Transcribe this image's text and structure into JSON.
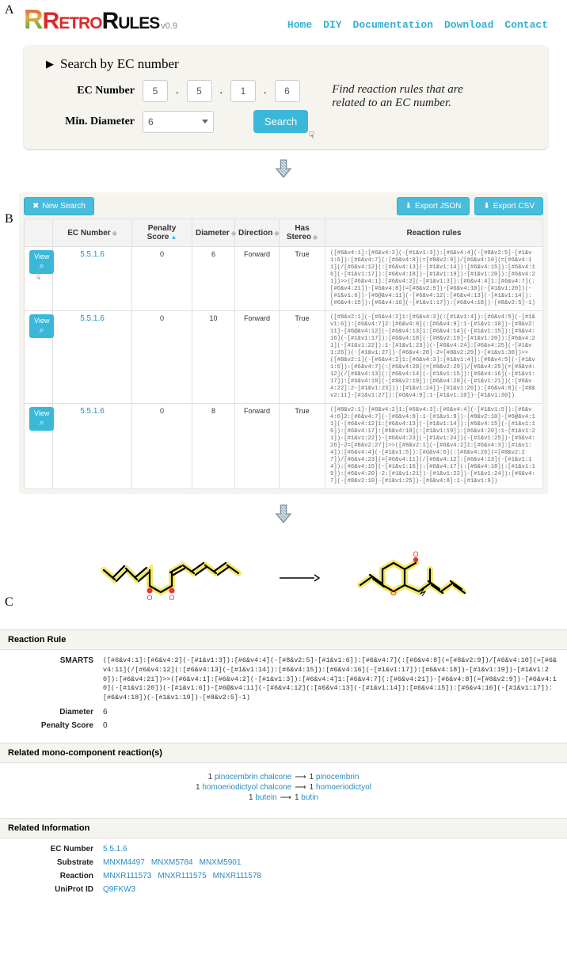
{
  "brand": {
    "retro": "Retro",
    "rules": "Rules",
    "version": "v0.9"
  },
  "nav": {
    "home": "Home",
    "diy": "DIY",
    "docs": "Documentation",
    "download": "Download",
    "contact": "Contact"
  },
  "labels": {
    "A": "A",
    "B": "B",
    "C": "C"
  },
  "search": {
    "title": "Search by EC number",
    "ec_label": "EC Number",
    "diam_label": "Min. Diameter",
    "ec": [
      "5",
      "5",
      "1",
      "6"
    ],
    "min_diameter": "6",
    "button": "Search",
    "desc": "Find reaction rules that are related to an EC number."
  },
  "results": {
    "new_search": "New Search",
    "export_json": "Export JSON",
    "export_csv": "Export CSV",
    "columns": {
      "ec": "EC Number",
      "penalty": "Penalty Score",
      "diameter": "Diameter",
      "direction": "Direction",
      "stereo": "Has Stereo",
      "rules": "Reaction rules",
      "view": "View"
    },
    "rows": [
      {
        "ec": "5.5.1.6",
        "penalty": "0",
        "diameter": "6",
        "direction": "Forward",
        "stereo": "True",
        "rules": "([#6&v4:1]:[#6&v4:2](-[#1&v1:3]):[#6&v4:4](-[#8&v2:5]-[#1&v1:6]):[#6&v4:7](:[#6&v4:8](=[#8&v2:9])/[#6&v4:10](=[#6&v4:11](/[#6&v4:12](:[#6&v4:13](-[#1&v1:14]):[#6&v4:15]):[#6&v4:16](-[#1&v1:17]):[#6&v4:18])-[#1&v1:19])-[#1&v1:20]):[#6&v4:21])>>([#6&v4:1]:[#6&v4:2](-[#1&v1:3]):[#6&v4:4]1:[#6&v4:7](:[#6&v4:21])-[#6&v4:8](=[#8&v2:9])-[#6&v4:10](-[#1&v1:20])(-[#1&v1:6])-[#6@&v4:11](-[#6&v4:12(:[#6&v4:13](-[#1&v1:14]):[#6&v4:15]):[#6&v4:16](-[#1&v1:17]):[#6&v4:18])-[#8&v2:5]-1)"
      },
      {
        "ec": "5.5.1.6",
        "penalty": "0",
        "diameter": "10",
        "direction": "Forward",
        "stereo": "True",
        "rules": "([#8&v2:1](-[#6&v4:2]1:[#6&v4:3](:[#1&v1:4]):[#6&v4:5](-[#1&v1:6]):[#6&v4:7]2:[#6&v4:8](:[#6&v4:9]:1-[#1&v1:10])-[#8&v2:11]-[#6@&v4:12](-[#6&v4:13]1:[#6&v4:14](-[#1&v1:15]):[#6&v4:16](-[#1&v1:17]):[#6&v4:18](-[#8&v2:19]-[#1&v1:20]):[#6&v4:21](-[#1&v1:22]):1-[#1&v1:23])(-[#6&v4:24]:[#6&v4:25](-[#1&v1:26])(-[#1&v1:27])-[#6&v4:28]-2=[#8&v2:29])-[#1&v1:30])>>([#8&v2:1](-[#6&v4:2]1:[#6&v4:3]:[#1&v1:4]):[#6&v4:5](-[#1&v1:6]):[#6&v4:7](:[#6&v4:28](=[#8&v2:29])/[#6&v4:25](=[#6&v4:12](/[#6&v4:13](:[#6&v4:14](-[#1&v1:15]):[#6&v4:16](-[#1&v1:17]):[#6&v4:18](-[#8&v2:19]):[#6&v4:20](-[#1&v1:21])(:[#6&v4:22]:2-[#1&v1:23])):[#1&v1:24])-[#1&v1:26]):[#6&v4:8](-[#8&v2:11]-[#1&v1:27]):[#6&v4:9]:1-[#1&v1:10])-[#1&v1:30])"
      },
      {
        "ec": "5.5.1.6",
        "penalty": "0",
        "diameter": "8",
        "direction": "Forward",
        "stereo": "True",
        "rules": "([#8&v2:1]-[#6&v4:2]1:[#6&v4:3]:[#6&v4:4](-[#1&v1:5]):[#6&v4:6]2:[#6&v4:7](-[#6&v4:8]:1-[#1&v1:9])-[#8&v2:10]-[#6@&v4:11](-[#6&v4:12]1:[#6&v4:13](-[#1&v1:14]):[#6&v4:15](-[#1&v1:16]):[#6&v4:17]:[#6&v4:18](:[#1&v1:19]):[#6&v4:20]:1-[#1&v1:21])-[#1&v1:22])-[#6&v4:23](-[#1&v1:24])(-[#1&v1:25])-[#6&v4:26]-2=[#8&v2:27])>>([#8&v2:1](-[#6&v4:2]1:[#6&v4:3]:[#1&v1:4]):[#6&v4:4](-[#1&v1:5]):[#6&v4:6](:[#6&v4:26](=[#8&v2:27])/[#6&v4:23](=[#6&v4:11](/[#6&v4:12]:[#6&v4:13](-[#1&v1:14]):[#6&v4:15](-[#1&v1:16]):[#6&v4:17](:[#6&v4:18](:[#1&v1:19]):[#6&v4:20]-2:[#1&v1:21])-[#1&v1:22])-[#1&v1:24]):[#6&v4:7](-[#8&v2:10]-[#1&v1:25])-[#6&v4:8]:1-[#1&v1:9])"
      }
    ]
  },
  "detail": {
    "section_rule": "Reaction Rule",
    "section_related_rxn": "Related mono-component reaction(s)",
    "section_related_info": "Related Information",
    "smarts_label": "SMARTS",
    "diameter_label": "Diameter",
    "penalty_label": "Penalty Score",
    "smarts": "([#6&v4:1]:[#6&v4:2](-[#1&v1:3]):[#6&v4:4](-[#8&v2:5]-[#1&v1:6]):[#6&v4:7](:[#6&v4:8](=[#8&v2:9])/[#6&v4:10](=[#6&v4:11](/[#6&v4:12](:[#6&v4:13](-[#1&v1:14]):[#6&v4:15]):[#6&v4:16](-[#1&v1:17]):[#6&v4:18])-[#1&v1:19])-[#1&v1:20]):[#6&v4:21])>>([#6&v4:1]:[#6&v4:2](-[#1&v1:3]):[#6&v4:4]1:[#6&v4:7](:[#6&v4:21])-[#6&v4:8](=[#8&v2:9])-[#6&v4:10](-[#1&v1:20])(-[#1&v1:6])-[#6@&v4:11](-[#6&v4:12](:[#6&v4:13](-[#1&v1:14]):[#6&v4:15]):[#6&v4:16](-[#1&v1:17]):[#6&v4:18])(-[#1&v1:19])-[#8&v2:5]-1)",
    "diameter": "6",
    "penalty": "0",
    "related_reactions": [
      {
        "n1": "1",
        "r1": "pinocembrin chalcone",
        "n2": "1",
        "r2": "pinocembrin"
      },
      {
        "n1": "1",
        "r1": "homoeriodictyol chalcone",
        "n2": "1",
        "r2": "homoeriodictyol"
      },
      {
        "n1": "1",
        "r1": "butein",
        "n2": "1",
        "r2": "butin"
      }
    ],
    "info": {
      "ec_label": "EC Number",
      "ec": "5.5.1.6",
      "substrate_label": "Substrate",
      "substrates": [
        "MNXM4497",
        "MNXM5784",
        "MNXM5901"
      ],
      "reaction_label": "Reaction",
      "reactions": [
        "MNXR111573",
        "MNXR111575",
        "MNXR111578"
      ],
      "uniprot_label": "UniProt ID",
      "uniprot": [
        "Q9FKW3"
      ]
    }
  }
}
